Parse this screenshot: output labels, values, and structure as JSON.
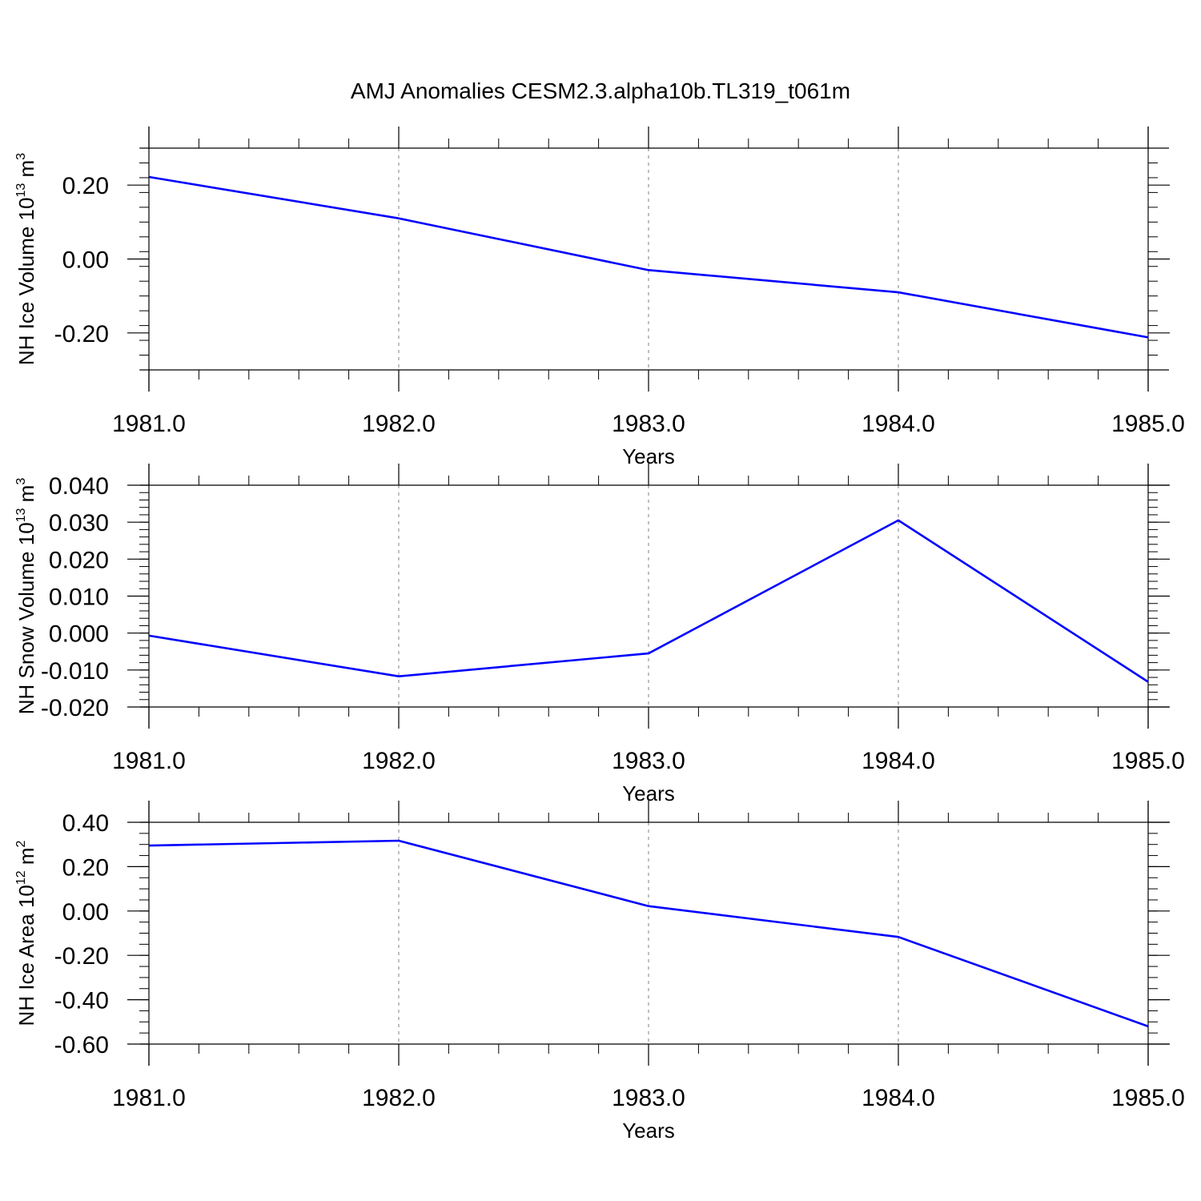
{
  "title": "AMJ Anomalies CESM2.3.alpha10b.TL319_t061m",
  "colors": {
    "line": "#0000ff",
    "axis": "#000000",
    "grid": "#808080"
  },
  "chart_data": [
    {
      "type": "line",
      "x": [
        1981,
        1982,
        1983,
        1984,
        1985
      ],
      "xlim": [
        1981,
        1985
      ],
      "xticks": [
        "1981.0",
        "1982.0",
        "1983.0",
        "1984.0",
        "1985.0"
      ],
      "xlabel": "Years",
      "ylabel": "NH Ice Volume 10",
      "ylabel_exp": "13",
      "ylabel_unit": "m",
      "ylabel_unit_exp": "3",
      "ylim": [
        -0.3,
        0.3
      ],
      "ytick_values": [
        -0.2,
        0.0,
        0.2
      ],
      "yticks": [
        "-0.20",
        "0.00",
        "0.20"
      ],
      "yminor_step": 0.04,
      "series": [
        {
          "values": [
            0.222,
            0.11,
            -0.03,
            -0.09,
            -0.212
          ]
        }
      ]
    },
    {
      "type": "line",
      "x": [
        1981,
        1982,
        1983,
        1984,
        1985
      ],
      "xlim": [
        1981,
        1985
      ],
      "xticks": [
        "1981.0",
        "1982.0",
        "1983.0",
        "1984.0",
        "1985.0"
      ],
      "xlabel": "Years",
      "ylabel": "NH Snow Volume 10",
      "ylabel_exp": "13",
      "ylabel_unit": "m",
      "ylabel_unit_exp": "3",
      "ylim": [
        -0.02,
        0.04
      ],
      "ytick_values": [
        -0.02,
        -0.01,
        0.0,
        0.01,
        0.02,
        0.03,
        0.04
      ],
      "yticks": [
        "-0.020",
        "-0.010",
        "0.000",
        "0.010",
        "0.020",
        "0.030",
        "0.040"
      ],
      "yminor_step": 0.002,
      "series": [
        {
          "values": [
            -0.0007,
            -0.0117,
            -0.0055,
            0.0305,
            -0.0132
          ]
        }
      ]
    },
    {
      "type": "line",
      "x": [
        1981,
        1982,
        1983,
        1984,
        1985
      ],
      "xlim": [
        1981,
        1985
      ],
      "xticks": [
        "1981.0",
        "1982.0",
        "1983.0",
        "1984.0",
        "1985.0"
      ],
      "xlabel": "Years",
      "ylabel": "NH Ice Area 10",
      "ylabel_exp": "12",
      "ylabel_unit": "m",
      "ylabel_unit_exp": "2",
      "ylim": [
        -0.6,
        0.4
      ],
      "ytick_values": [
        -0.6,
        -0.4,
        -0.2,
        0.0,
        0.2,
        0.4
      ],
      "yticks": [
        "-0.60",
        "-0.40",
        "-0.20",
        "0.00",
        "0.20",
        "0.40"
      ],
      "yminor_step": 0.05,
      "series": [
        {
          "values": [
            0.295,
            0.317,
            0.022,
            -0.117,
            -0.52
          ]
        }
      ]
    }
  ]
}
